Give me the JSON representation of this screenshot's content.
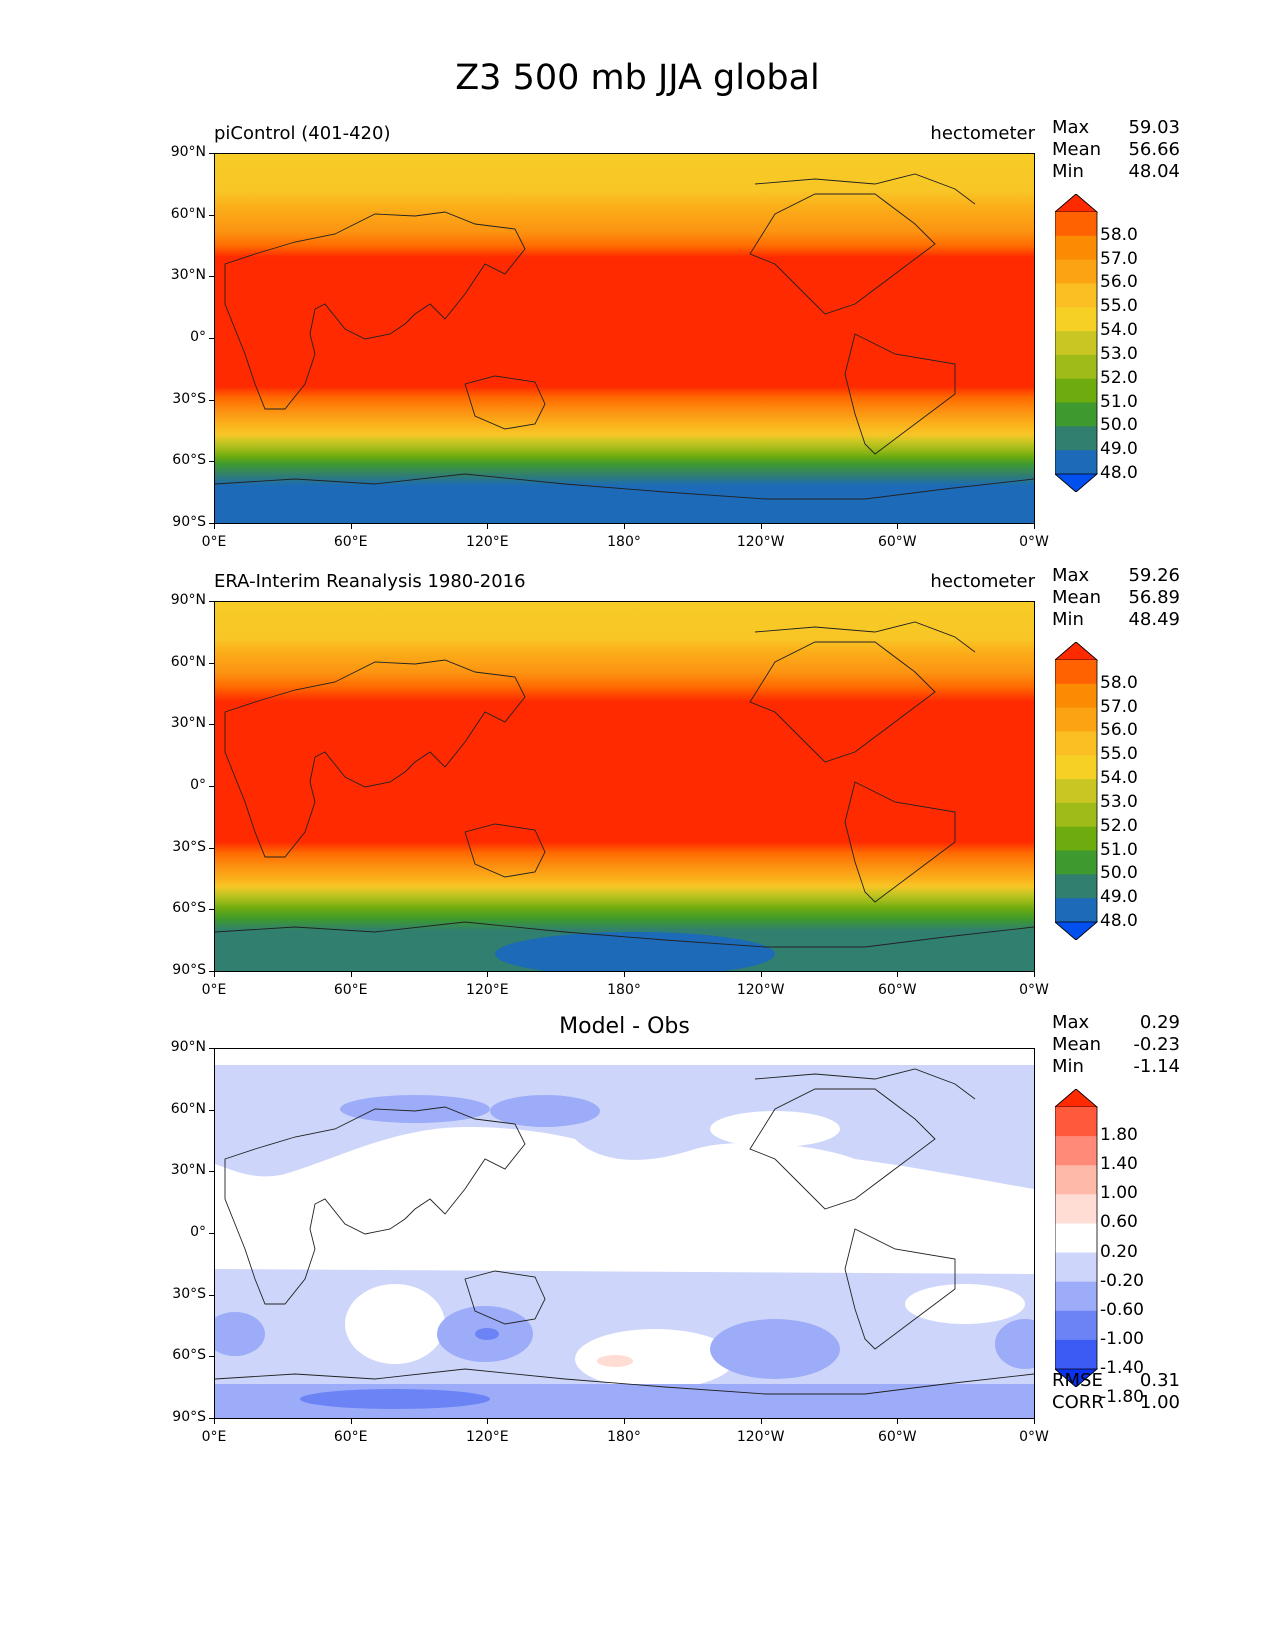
{
  "figure": {
    "title": "Z3 500 mb JJA global"
  },
  "panels": [
    {
      "id": "model",
      "left_title": "piControl (401-420)",
      "center_title": "",
      "units": "hectometer",
      "stats": {
        "labels": [
          "Max",
          "Mean",
          "Min"
        ],
        "values": [
          "59.03",
          "56.66",
          "48.04"
        ]
      },
      "colorbar": {
        "labels": [
          "58.0",
          "57.0",
          "56.0",
          "55.0",
          "54.0",
          "53.0",
          "52.0",
          "51.0",
          "50.0",
          "49.0",
          "48.0"
        ],
        "colors": [
          "#ff2a00",
          "#ff6200",
          "#fc8b04",
          "#fca314",
          "#fbbf24",
          "#f7d026",
          "#c9c623",
          "#9fbb19",
          "#6dab0f",
          "#3e9a2e",
          "#317f6f",
          "#1c6ab8",
          "#0050f0"
        ]
      }
    },
    {
      "id": "obs",
      "left_title": "ERA-Interim Reanalysis 1980-2016",
      "center_title": "",
      "units": "hectometer",
      "stats": {
        "labels": [
          "Max",
          "Mean",
          "Min"
        ],
        "values": [
          "59.26",
          "56.89",
          "48.49"
        ]
      },
      "colorbar": {
        "labels": [
          "58.0",
          "57.0",
          "56.0",
          "55.0",
          "54.0",
          "53.0",
          "52.0",
          "51.0",
          "50.0",
          "49.0",
          "48.0"
        ],
        "colors": [
          "#ff2a00",
          "#ff6200",
          "#fc8b04",
          "#fca314",
          "#fbbf24",
          "#f7d026",
          "#c9c623",
          "#9fbb19",
          "#6dab0f",
          "#3e9a2e",
          "#317f6f",
          "#1c6ab8",
          "#0050f0"
        ]
      }
    },
    {
      "id": "diff",
      "left_title": "",
      "center_title": "Model - Obs",
      "units": "",
      "stats": {
        "labels": [
          "Max",
          "Mean",
          "Min"
        ],
        "values": [
          "0.29",
          "-0.23",
          "-1.14"
        ]
      },
      "colorbar": {
        "labels": [
          "1.80",
          "1.40",
          "1.00",
          "0.60",
          "0.20",
          "-0.20",
          "-0.60",
          "-1.00",
          "-1.40",
          "-1.80"
        ],
        "colors": [
          "#ff2a00",
          "#ff5a3c",
          "#ff8a78",
          "#ffb9a8",
          "#ffdcd4",
          "#ffffff",
          "#cdd6fa",
          "#9cacf8",
          "#6c83f6",
          "#3c5af4",
          "#0a32f2"
        ]
      },
      "bottom_stats": {
        "labels": [
          "RMSE",
          "CORR"
        ],
        "values": [
          "0.31",
          "1.00"
        ]
      }
    }
  ],
  "axes": {
    "y_ticks": [
      "90°N",
      "60°N",
      "30°N",
      "0°",
      "30°S",
      "60°S",
      "90°S"
    ],
    "x_ticks": [
      "0°E",
      "60°E",
      "120°E",
      "180°",
      "120°W",
      "60°W",
      "0°W"
    ]
  }
}
